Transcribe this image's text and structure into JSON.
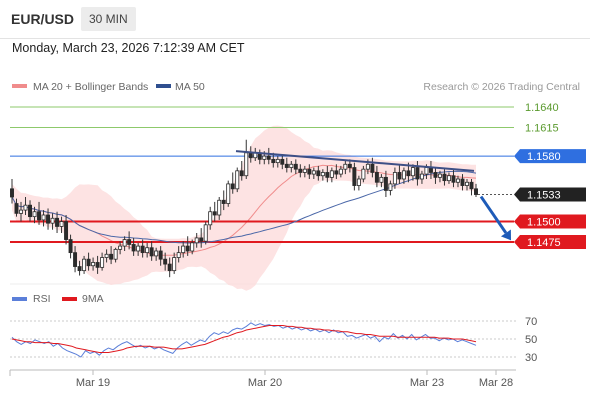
{
  "header": {
    "symbol": "EUR/USD",
    "timeframe": "30 MIN",
    "datetime": "Monday, March 23, 2026 7:12:39 AM CET"
  },
  "legend": {
    "ma20": {
      "label": "MA 20 + Bollinger Bands",
      "color": "#f08c8c"
    },
    "ma50": {
      "label": "MA 50",
      "color": "#2f4f8f"
    },
    "credit": "Research © 2026 Trading Central"
  },
  "chart_data": [
    {
      "type": "candlestick",
      "title": "",
      "x_ticks": [
        "Mar 19",
        "Mar 20",
        "Mar 23",
        "Mar 28"
      ],
      "ylim": [
        1.141,
        1.166
      ],
      "levels": [
        {
          "value": 1.164,
          "label": "1.1640",
          "kind": "resistance",
          "color": "#8dc96b"
        },
        {
          "value": 1.1615,
          "label": "1.1615",
          "kind": "resistance",
          "color": "#8dc96b"
        },
        {
          "value": 1.158,
          "label": "1.1580",
          "kind": "pivot",
          "color": "#2f6fe0"
        },
        {
          "value": 1.1533,
          "label": "1.1533",
          "kind": "last-price",
          "color": "#222222"
        },
        {
          "value": 1.15,
          "label": "1.1500",
          "kind": "target",
          "color": "#e0191f"
        },
        {
          "value": 1.1475,
          "label": "1.1475",
          "kind": "target",
          "color": "#e0191f"
        }
      ],
      "trendline": {
        "from": 1.1586,
        "to": 1.1562
      },
      "forecast_arrow": {
        "from": 1.1533,
        "to": 1.1477
      },
      "candles": [
        [
          1.154,
          1.1552,
          1.153,
          1.1522
        ],
        [
          1.1522,
          1.1528,
          1.151,
          1.1506
        ],
        [
          1.151,
          1.1524,
          1.1514,
          1.15
        ],
        [
          1.1514,
          1.153,
          1.152,
          1.1508
        ],
        [
          1.152,
          1.1526,
          1.1506,
          1.15
        ],
        [
          1.1506,
          1.1518,
          1.1512,
          1.1498
        ],
        [
          1.1512,
          1.1524,
          1.1502,
          1.1496
        ],
        [
          1.1502,
          1.1514,
          1.1508,
          1.1494
        ],
        [
          1.1508,
          1.1516,
          1.1498,
          1.149
        ],
        [
          1.1498,
          1.151,
          1.1504,
          1.149
        ],
        [
          1.1504,
          1.1512,
          1.1494,
          1.1486
        ],
        [
          1.1494,
          1.1506,
          1.15,
          1.1486
        ],
        [
          1.15,
          1.1508,
          1.1478,
          1.1472
        ],
        [
          1.1478,
          1.1484,
          1.1462,
          1.1455
        ],
        [
          1.1462,
          1.147,
          1.1445,
          1.1438
        ],
        [
          1.1445,
          1.1452,
          1.144,
          1.1434
        ],
        [
          1.144,
          1.1458,
          1.1454,
          1.1436
        ],
        [
          1.1454,
          1.1462,
          1.1446,
          1.144
        ],
        [
          1.1446,
          1.1456,
          1.145,
          1.144
        ],
        [
          1.145,
          1.1458,
          1.1444,
          1.1436
        ],
        [
          1.1444,
          1.1462,
          1.1456,
          1.144
        ],
        [
          1.1456,
          1.1466,
          1.146,
          1.145
        ],
        [
          1.146,
          1.147,
          1.1454,
          1.1448
        ],
        [
          1.1454,
          1.1468,
          1.1466,
          1.145
        ],
        [
          1.1466,
          1.1476,
          1.147,
          1.146
        ],
        [
          1.147,
          1.1482,
          1.1478,
          1.1464
        ],
        [
          1.1478,
          1.1488,
          1.1472,
          1.1466
        ],
        [
          1.1472,
          1.148,
          1.1464,
          1.1458
        ],
        [
          1.1464,
          1.1474,
          1.147,
          1.1458
        ],
        [
          1.147,
          1.1478,
          1.1462,
          1.1456
        ],
        [
          1.1462,
          1.1474,
          1.1468,
          1.1456
        ],
        [
          1.1468,
          1.1476,
          1.1458,
          1.1452
        ],
        [
          1.1458,
          1.1468,
          1.1464,
          1.1452
        ],
        [
          1.1464,
          1.147,
          1.1454,
          1.1446
        ],
        [
          1.1454,
          1.1462,
          1.1448,
          1.144
        ],
        [
          1.1448,
          1.1456,
          1.144,
          1.1432
        ],
        [
          1.144,
          1.1462,
          1.1456,
          1.1436
        ],
        [
          1.1456,
          1.147,
          1.1462,
          1.145
        ],
        [
          1.1462,
          1.1476,
          1.147,
          1.1456
        ],
        [
          1.147,
          1.1482,
          1.1464,
          1.1458
        ],
        [
          1.1464,
          1.1478,
          1.1474,
          1.146
        ],
        [
          1.1474,
          1.1486,
          1.148,
          1.1468
        ],
        [
          1.148,
          1.1492,
          1.1476,
          1.1468
        ],
        [
          1.1476,
          1.15,
          1.1496,
          1.1472
        ],
        [
          1.1496,
          1.1518,
          1.1512,
          1.149
        ],
        [
          1.1512,
          1.1524,
          1.1508,
          1.15
        ],
        [
          1.1508,
          1.153,
          1.1526,
          1.1502
        ],
        [
          1.1526,
          1.1538,
          1.1522,
          1.1514
        ],
        [
          1.1522,
          1.155,
          1.1546,
          1.1518
        ],
        [
          1.1546,
          1.156,
          1.154,
          1.1534
        ],
        [
          1.154,
          1.1566,
          1.1562,
          1.1536
        ],
        [
          1.1562,
          1.1574,
          1.1556,
          1.155
        ],
        [
          1.1556,
          1.16,
          1.1584,
          1.1552
        ],
        [
          1.1584,
          1.1592,
          1.1578,
          1.1572
        ],
        [
          1.1578,
          1.159,
          1.1584,
          1.1574
        ],
        [
          1.1584,
          1.1588,
          1.1576,
          1.157
        ],
        [
          1.1576,
          1.1586,
          1.158,
          1.157
        ],
        [
          1.158,
          1.159,
          1.1576,
          1.157
        ],
        [
          1.1576,
          1.1584,
          1.1572,
          1.1566
        ],
        [
          1.1572,
          1.158,
          1.1576,
          1.1566
        ],
        [
          1.1576,
          1.1582,
          1.157,
          1.1564
        ],
        [
          1.157,
          1.1578,
          1.1566,
          1.156
        ],
        [
          1.1566,
          1.1574,
          1.157,
          1.156
        ],
        [
          1.157,
          1.1576,
          1.1564,
          1.1558
        ],
        [
          1.1564,
          1.157,
          1.156,
          1.1554
        ],
        [
          1.156,
          1.1568,
          1.1564,
          1.1554
        ],
        [
          1.1564,
          1.157,
          1.1558,
          1.1552
        ],
        [
          1.1558,
          1.1566,
          1.1562,
          1.1552
        ],
        [
          1.1562,
          1.1568,
          1.1556,
          1.155
        ],
        [
          1.1556,
          1.1564,
          1.156,
          1.155
        ],
        [
          1.156,
          1.1568,
          1.1554,
          1.1548
        ],
        [
          1.1554,
          1.1566,
          1.1562,
          1.1548
        ],
        [
          1.1562,
          1.157,
          1.1558,
          1.1552
        ],
        [
          1.1558,
          1.1568,
          1.1564,
          1.1554
        ],
        [
          1.1564,
          1.1574,
          1.157,
          1.1558
        ],
        [
          1.157,
          1.1576,
          1.1566,
          1.156
        ],
        [
          1.1566,
          1.1572,
          1.1544,
          1.1538
        ],
        [
          1.1544,
          1.1556,
          1.1552,
          1.1538
        ],
        [
          1.1552,
          1.1568,
          1.1564,
          1.1548
        ],
        [
          1.1564,
          1.1576,
          1.157,
          1.1558
        ],
        [
          1.157,
          1.1578,
          1.156,
          1.1554
        ],
        [
          1.156,
          1.1568,
          1.1548,
          1.1542
        ],
        [
          1.1548,
          1.1558,
          1.1554,
          1.1542
        ],
        [
          1.1554,
          1.1562,
          1.1538,
          1.153
        ],
        [
          1.1538,
          1.155,
          1.1546,
          1.1532
        ],
        [
          1.1546,
          1.1566,
          1.156,
          1.154
        ],
        [
          1.156,
          1.157,
          1.1552,
          1.1546
        ],
        [
          1.1552,
          1.1566,
          1.1562,
          1.1546
        ],
        [
          1.1562,
          1.1572,
          1.1556,
          1.1548
        ],
        [
          1.1556,
          1.157,
          1.1566,
          1.155
        ],
        [
          1.1566,
          1.1574,
          1.1552,
          1.1544
        ],
        [
          1.1552,
          1.1562,
          1.1558,
          1.1546
        ],
        [
          1.1558,
          1.157,
          1.1566,
          1.1552
        ],
        [
          1.1566,
          1.1574,
          1.156,
          1.1552
        ],
        [
          1.156,
          1.1566,
          1.1554,
          1.1546
        ],
        [
          1.1554,
          1.1562,
          1.1558,
          1.1548
        ],
        [
          1.1558,
          1.1564,
          1.155,
          1.1544
        ],
        [
          1.155,
          1.156,
          1.1556,
          1.1546
        ],
        [
          1.1556,
          1.1564,
          1.1548,
          1.1542
        ],
        [
          1.1548,
          1.1556,
          1.1552,
          1.1542
        ],
        [
          1.1552,
          1.1558,
          1.1544,
          1.1538
        ],
        [
          1.1544,
          1.1552,
          1.1548,
          1.1538
        ],
        [
          1.1548,
          1.1552,
          1.154,
          1.1532
        ],
        [
          1.154,
          1.1546,
          1.1533,
          1.153
        ]
      ]
    },
    {
      "type": "line",
      "title": "",
      "legend": [
        "RSI",
        "9MA"
      ],
      "series": [
        {
          "name": "RSI",
          "color": "#5b7fd9"
        },
        {
          "name": "9MA",
          "color": "#e0191f"
        }
      ],
      "ylim": [
        25,
        80
      ],
      "y_ticks": [
        70,
        50,
        30
      ],
      "rsi": [
        52,
        47,
        44,
        47,
        45,
        49,
        47,
        45,
        47,
        42,
        45,
        40,
        37,
        35,
        33,
        30,
        37,
        34,
        36,
        32,
        37,
        40,
        38,
        42,
        45,
        47,
        44,
        41,
        43,
        40,
        42,
        39,
        41,
        38,
        36,
        34,
        40,
        44,
        47,
        43,
        46,
        49,
        47,
        53,
        57,
        55,
        58,
        56,
        60,
        62,
        61,
        64,
        68,
        65,
        67,
        65,
        66,
        64,
        65,
        62,
        64,
        61,
        63,
        60,
        62,
        59,
        61,
        58,
        60,
        57,
        60,
        57,
        58,
        53,
        54,
        51,
        53,
        55,
        51,
        53,
        47,
        52,
        50,
        56,
        51,
        54,
        50,
        55,
        49,
        52,
        55,
        51,
        51,
        48,
        51,
        49,
        50,
        47,
        49,
        47,
        45,
        43
      ],
      "ma9": [
        50,
        49,
        48,
        47,
        47,
        46,
        46,
        46,
        46,
        45,
        45,
        44,
        43,
        42,
        40,
        39,
        38,
        37,
        36,
        35,
        35,
        35,
        36,
        37,
        38,
        40,
        41,
        42,
        42,
        42,
        42,
        41,
        41,
        41,
        40,
        39,
        39,
        39,
        40,
        41,
        42,
        43,
        44,
        46,
        48,
        50,
        52,
        53,
        55,
        57,
        58,
        60,
        61,
        62,
        63,
        64,
        65,
        65,
        65,
        65,
        64,
        64,
        63,
        63,
        62,
        62,
        61,
        61,
        60,
        60,
        59,
        59,
        58,
        58,
        57,
        56,
        56,
        55,
        55,
        54,
        53,
        53,
        53,
        53,
        52,
        52,
        52,
        52,
        52,
        52,
        52,
        52,
        52,
        51,
        51,
        51,
        50,
        50,
        50,
        49,
        48,
        47
      ]
    }
  ]
}
